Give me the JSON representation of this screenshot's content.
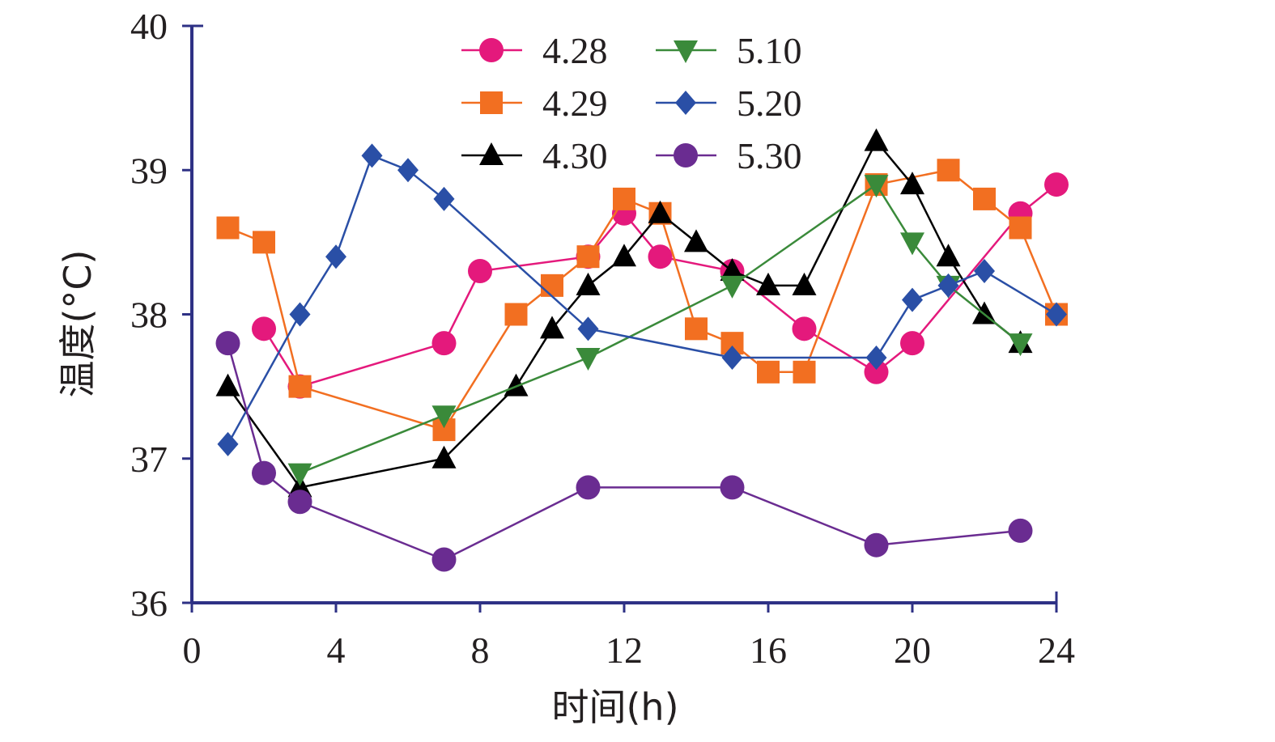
{
  "chart_data": {
    "type": "line",
    "xlabel": "时间(h)",
    "ylabel": "温度(°C)",
    "xlim": [
      0,
      24
    ],
    "ylim": [
      36,
      40
    ],
    "xticks": [
      0,
      4,
      8,
      12,
      16,
      20,
      24
    ],
    "yticks": [
      36,
      37,
      38,
      39,
      40
    ],
    "xtick_labels": [
      "0",
      "4",
      "8",
      "12",
      "16",
      "20",
      "24"
    ],
    "ytick_labels": [
      "36",
      "37",
      "38",
      "39",
      "40"
    ],
    "grid": false,
    "legend_position": "top-center",
    "series": [
      {
        "name": "4.28",
        "color": "#e4197c",
        "marker": "circle",
        "x": [
          2,
          3,
          7,
          8,
          11,
          12,
          13,
          15,
          17,
          19,
          20,
          23,
          24
        ],
        "y": [
          37.9,
          37.5,
          37.8,
          38.3,
          38.4,
          38.7,
          38.4,
          38.3,
          37.9,
          37.6,
          37.8,
          38.7,
          38.9
        ]
      },
      {
        "name": "4.29",
        "color": "#f26f21",
        "marker": "square",
        "x": [
          1,
          2,
          3,
          7,
          9,
          10,
          11,
          12,
          13,
          14,
          15,
          16,
          17,
          19,
          21,
          22,
          23,
          24
        ],
        "y": [
          38.6,
          38.5,
          37.5,
          37.2,
          38.0,
          38.2,
          38.4,
          38.8,
          38.7,
          37.9,
          37.8,
          37.6,
          37.6,
          38.9,
          39.0,
          38.8,
          38.6,
          38.0
        ]
      },
      {
        "name": "4.30",
        "color": "#000000",
        "marker": "triangle-up",
        "x": [
          1,
          3,
          7,
          9,
          10,
          11,
          12,
          13,
          14,
          15,
          16,
          17,
          19,
          20,
          21,
          22,
          23
        ],
        "y": [
          37.5,
          36.8,
          37.0,
          37.5,
          37.9,
          38.2,
          38.4,
          38.7,
          38.5,
          38.3,
          38.2,
          38.2,
          39.2,
          38.9,
          38.4,
          38.0,
          37.8
        ]
      },
      {
        "name": "5.10",
        "color": "#3a8a3a",
        "marker": "triangle-down",
        "x": [
          3,
          7,
          11,
          15,
          19,
          20,
          21,
          23
        ],
        "y": [
          36.9,
          37.3,
          37.7,
          38.2,
          38.9,
          38.5,
          38.2,
          37.8
        ]
      },
      {
        "name": "5.20",
        "color": "#2a4fa6",
        "marker": "diamond",
        "x": [
          1,
          3,
          4,
          5,
          6,
          7,
          11,
          15,
          19,
          20,
          21,
          22,
          24
        ],
        "y": [
          37.1,
          38.0,
          38.4,
          39.1,
          39.0,
          38.8,
          37.9,
          37.7,
          37.7,
          38.1,
          38.2,
          38.3,
          38.0
        ]
      },
      {
        "name": "5.30",
        "color": "#6a2c91",
        "marker": "circle",
        "x": [
          1,
          2,
          3,
          7,
          11,
          15,
          19,
          23
        ],
        "y": [
          37.8,
          36.9,
          36.7,
          36.3,
          36.8,
          36.8,
          36.4,
          36.5
        ]
      }
    ]
  }
}
